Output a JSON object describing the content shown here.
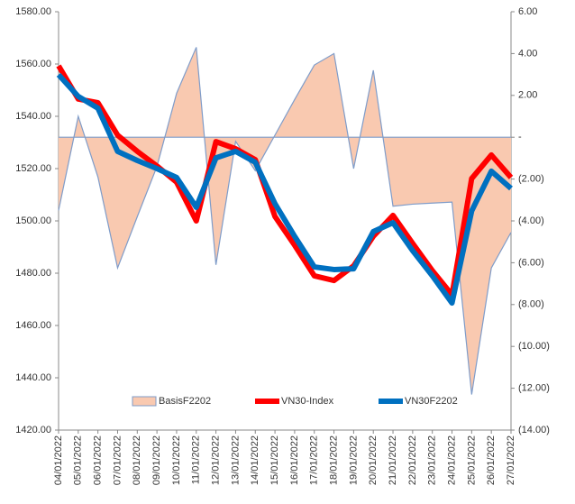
{
  "chart_data": {
    "type": "line",
    "categories": [
      "04/01/2022",
      "05/01/2022",
      "06/01/2022",
      "07/01/2022",
      "08/01/2022",
      "09/01/2022",
      "10/01/2022",
      "11/01/2022",
      "12/01/2022",
      "13/01/2022",
      "14/01/2022",
      "15/01/2022",
      "16/01/2022",
      "17/01/2022",
      "18/01/2022",
      "19/01/2022",
      "20/01/2022",
      "21/01/2022",
      "22/01/2022",
      "23/01/2022",
      "24/01/2022",
      "25/01/2022",
      "26/01/2022",
      "27/01/2022"
    ],
    "series": [
      {
        "name": "BasisF2202",
        "kind": "area",
        "axis": "y2",
        "color": "#f9c9b0",
        "edge_color": "#7f9cc9",
        "values": [
          -3.5,
          1.0,
          -1.9,
          -6.25,
          -3.8,
          -1.4,
          2.1,
          4.3,
          -6.1,
          -0.2,
          -1.6,
          0.1,
          1.8,
          3.45,
          4.0,
          -1.5,
          3.2,
          -3.3,
          -3.2,
          -3.15,
          -3.1,
          -12.3,
          -6.25,
          -4.55
        ]
      },
      {
        "name": "VN30-Index",
        "kind": "line",
        "color": "#ff0000",
        "values": [
          1559.3,
          1546.6,
          1545.2,
          1532.8,
          1526.6,
          1521.0,
          1514.8,
          1500.0,
          1530.3,
          1527.6,
          1523.4,
          1501.7,
          1490.7,
          1479.0,
          1477.2,
          1482.8,
          1494.1,
          1502.1,
          1491.4,
          1481.0,
          1471.7,
          1516.2,
          1525.2,
          1516.6
        ]
      },
      {
        "name": "VN30F2202",
        "kind": "line",
        "color": "#0070c0",
        "values": [
          1555.9,
          1547.6,
          1543.1,
          1526.6,
          1523.1,
          1520.0,
          1516.6,
          1505.2,
          1524.1,
          1526.6,
          1522.4,
          1506.6,
          1494.1,
          1482.4,
          1481.4,
          1481.7,
          1495.9,
          1499.3,
          1488.6,
          1479.0,
          1468.6,
          1503.8,
          1519.0,
          1512.4
        ]
      }
    ],
    "ylim": [
      1420,
      1580
    ],
    "yticks": [
      {
        "value": 1420,
        "label": "1420.00"
      },
      {
        "value": 1440,
        "label": "1440.00"
      },
      {
        "value": 1460,
        "label": "1460.00"
      },
      {
        "value": 1480,
        "label": "1480.00"
      },
      {
        "value": 1500,
        "label": "1500.00"
      },
      {
        "value": 1520,
        "label": "1520.00"
      },
      {
        "value": 1540,
        "label": "1540.00"
      },
      {
        "value": 1560,
        "label": "1560.00"
      },
      {
        "value": 1580,
        "label": "1580.00"
      }
    ],
    "y2lim": [
      -14,
      6
    ],
    "y2ticks": [
      {
        "value": -14,
        "label": "(14.00)"
      },
      {
        "value": -12,
        "label": "(12.00)"
      },
      {
        "value": -10,
        "label": "(10.00)"
      },
      {
        "value": -8,
        "label": "(8.00)"
      },
      {
        "value": -6,
        "label": "(6.00)"
      },
      {
        "value": -4,
        "label": "(4.00)"
      },
      {
        "value": -2,
        "label": "(2.00)"
      },
      {
        "value": 0,
        "label": "-"
      },
      {
        "value": 2,
        "label": "2.00"
      },
      {
        "value": 4,
        "label": "4.00"
      },
      {
        "value": 6,
        "label": "6.00"
      }
    ],
    "legend": "bottom"
  }
}
